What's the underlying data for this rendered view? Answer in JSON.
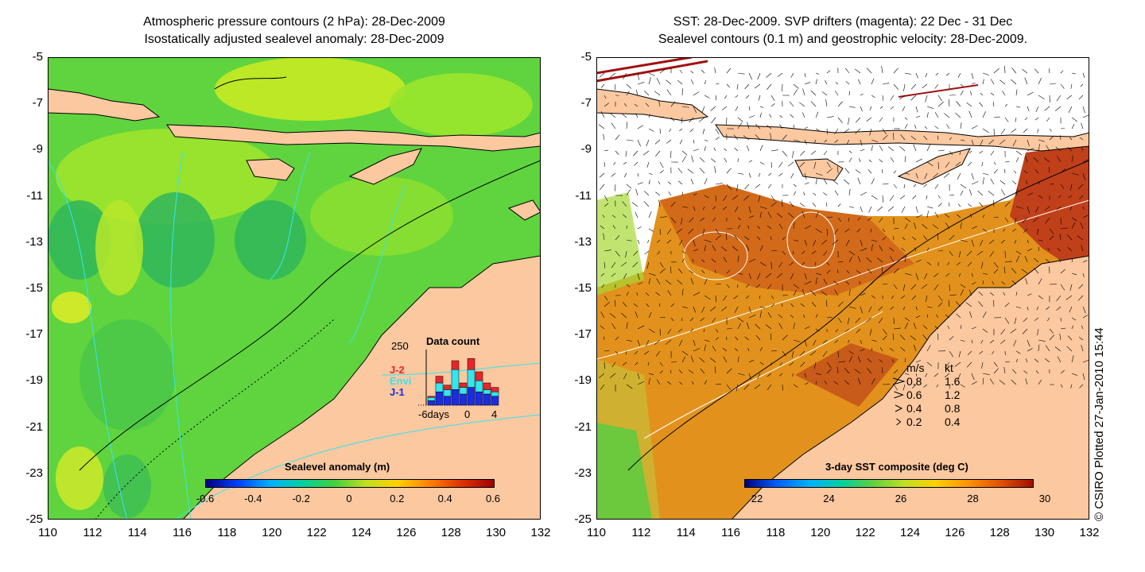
{
  "left_panel": {
    "title_line1": "Atmospheric pressure contours (2 hPa): 28-Dec-2009",
    "title_line2": "Isostatically adjusted sealevel anomaly: 28-Dec-2009",
    "colorbar_label": "Sealevel anomaly (m)",
    "colorbar_ticks": [
      "-0.6",
      "-0.4",
      "-0.2",
      "0",
      "0.2",
      "0.4",
      "0.6"
    ],
    "inset": {
      "title": "Data count",
      "ymax_label": "250",
      "legend": [
        "J-2",
        "Envi",
        "J-1"
      ],
      "legend_colors": [
        "#e8262a",
        "#35e6ee",
        "#1a2de0"
      ],
      "x_labels": [
        "-6days",
        "0",
        "4"
      ],
      "bars": [
        {
          "j1": 20,
          "envi": 15,
          "j2": 5
        },
        {
          "j1": 60,
          "envi": 40,
          "j2": 30
        },
        {
          "j1": 40,
          "envi": 30,
          "j2": 20
        },
        {
          "j1": 70,
          "envi": 90,
          "j2": 40
        },
        {
          "j1": 50,
          "envi": 30,
          "j2": 20
        },
        {
          "j1": 80,
          "envi": 80,
          "j2": 50
        },
        {
          "j1": 60,
          "envi": 50,
          "j2": 40
        },
        {
          "j1": 50,
          "envi": 20,
          "j2": 30
        },
        {
          "j1": 40,
          "envi": 20,
          "j2": 20
        }
      ]
    }
  },
  "right_panel": {
    "title_line1": "SST: 28-Dec-2009. SVP drifters (magenta): 22 Dec - 31 Dec",
    "title_line2": "Sealevel contours (0.1 m) and geostrophic velocity: 28-Dec-2009.",
    "colorbar_label": "3-day SST composite (deg C)",
    "colorbar_ticks": [
      "22",
      "24",
      "26",
      "28",
      "30"
    ],
    "velocity_legend": {
      "header_ms": "m/s",
      "header_kt": "kt",
      "rows": [
        {
          "ms": "0.8",
          "kt": "1.6"
        },
        {
          "ms": "0.6",
          "kt": "1.2"
        },
        {
          "ms": "0.4",
          "kt": "0.8"
        },
        {
          "ms": "0.2",
          "kt": "0.4"
        }
      ]
    }
  },
  "axes": {
    "y_ticks": [
      "-5",
      "-7",
      "-9",
      "-11",
      "-13",
      "-15",
      "-17",
      "-19",
      "-21",
      "-23",
      "-25"
    ],
    "x_ticks": [
      "110",
      "112",
      "114",
      "116",
      "118",
      "120",
      "122",
      "124",
      "126",
      "128",
      "130",
      "132"
    ]
  },
  "credit": "© CSIRO Plotted 27-Jan-2010 15:44",
  "colors": {
    "land": "#fbc8a0",
    "sla_bg": "#58d23a",
    "sst_warm": "#e08a18",
    "sst_hot": "#c0401a"
  }
}
